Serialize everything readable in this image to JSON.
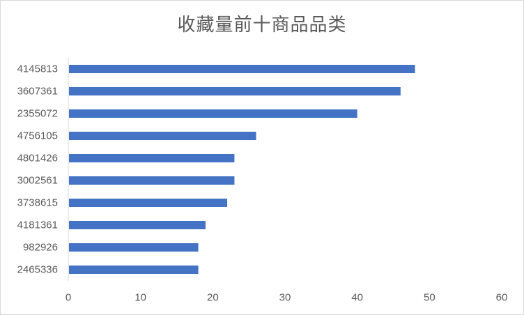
{
  "chart_data": {
    "type": "bar",
    "orientation": "horizontal",
    "title": "收藏量前十商品品类",
    "categories": [
      "4145813",
      "3607361",
      "2355072",
      "4756105",
      "4801426",
      "3002561",
      "3738615",
      "4181361",
      "982926",
      "2465336"
    ],
    "values": [
      48,
      46,
      40,
      26,
      23,
      23,
      22,
      19,
      18,
      18
    ],
    "xlim": [
      0,
      60
    ],
    "xticks": [
      0,
      10,
      20,
      30,
      40,
      50,
      60
    ],
    "xlabel": "",
    "ylabel": "",
    "grid": false,
    "legend": "none",
    "bar_color": "#4472c4",
    "axis_color": "#d9d9d9"
  }
}
